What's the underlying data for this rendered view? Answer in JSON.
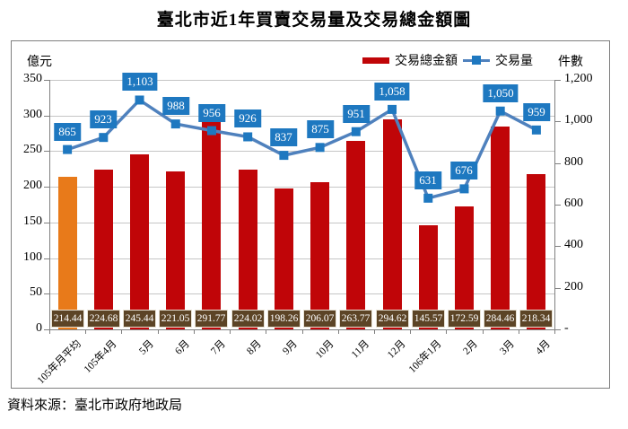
{
  "title": "臺北市近1年買賣交易量及交易總金額圖",
  "source": "資料來源：臺北市政府地政局",
  "chart_data": {
    "type": "bar+line combo",
    "title": "臺北市近1年買賣交易量及交易總金額圖",
    "grid": true,
    "legend_position": "top-right",
    "categories": [
      "105年月平均",
      "105年4月",
      "5月",
      "6月",
      "7月",
      "8月",
      "9月",
      "10月",
      "11月",
      "12月",
      "106年1月",
      "2月",
      "3月",
      "4月"
    ],
    "left_axis": {
      "label": "億元",
      "min": 0,
      "max": 350,
      "step": 50,
      "tick_labels": [
        "0",
        "50",
        "100",
        "150",
        "200",
        "250",
        "300",
        "350"
      ]
    },
    "right_axis": {
      "label": "件數",
      "min": 0,
      "max": 1200,
      "step": 200,
      "tick_labels": [
        "-",
        "200",
        "400",
        "600",
        "800",
        "1,000",
        "1,200"
      ]
    },
    "legend": [
      {
        "name": "交易總金額",
        "type": "bar",
        "color": "#c00508"
      },
      {
        "name": "交易量",
        "type": "line",
        "color": "#4f81bd"
      }
    ],
    "series": [
      {
        "name": "交易總金額",
        "type": "bar",
        "axis": "left",
        "values": [
          214.44,
          224.68,
          245.44,
          221.05,
          291.77,
          224.02,
          198.26,
          206.07,
          263.77,
          294.62,
          145.57,
          172.59,
          284.46,
          218.34
        ],
        "value_labels": [
          "214.44",
          "224.68",
          "245.44",
          "221.05",
          "291.77",
          "224.02",
          "198.26",
          "206.07",
          "263.77",
          "294.62",
          "145.57",
          "172.59",
          "284.46",
          "218.34"
        ]
      },
      {
        "name": "交易量",
        "type": "line",
        "axis": "right",
        "values": [
          865,
          923,
          1103,
          988,
          956,
          926,
          837,
          875,
          951,
          1058,
          631,
          676,
          1050,
          959
        ],
        "value_labels": [
          "865",
          "923",
          "1,103",
          "988",
          "956",
          "926",
          "837",
          "875",
          "951",
          "1,058",
          "631",
          "676",
          "1,050",
          "959"
        ]
      }
    ]
  },
  "colors": {
    "bar": "#c00508",
    "bar_average": "#e87a1a",
    "line": "#4f81bd",
    "marker": "#1e78c0",
    "line_label_box": "#1e78c0",
    "value_box_bg": "#5c4426",
    "value_box_border": "#e8e3d5",
    "gridline": "#c6c6c6",
    "axis": "#808080",
    "frame": "#7f7f7f"
  }
}
